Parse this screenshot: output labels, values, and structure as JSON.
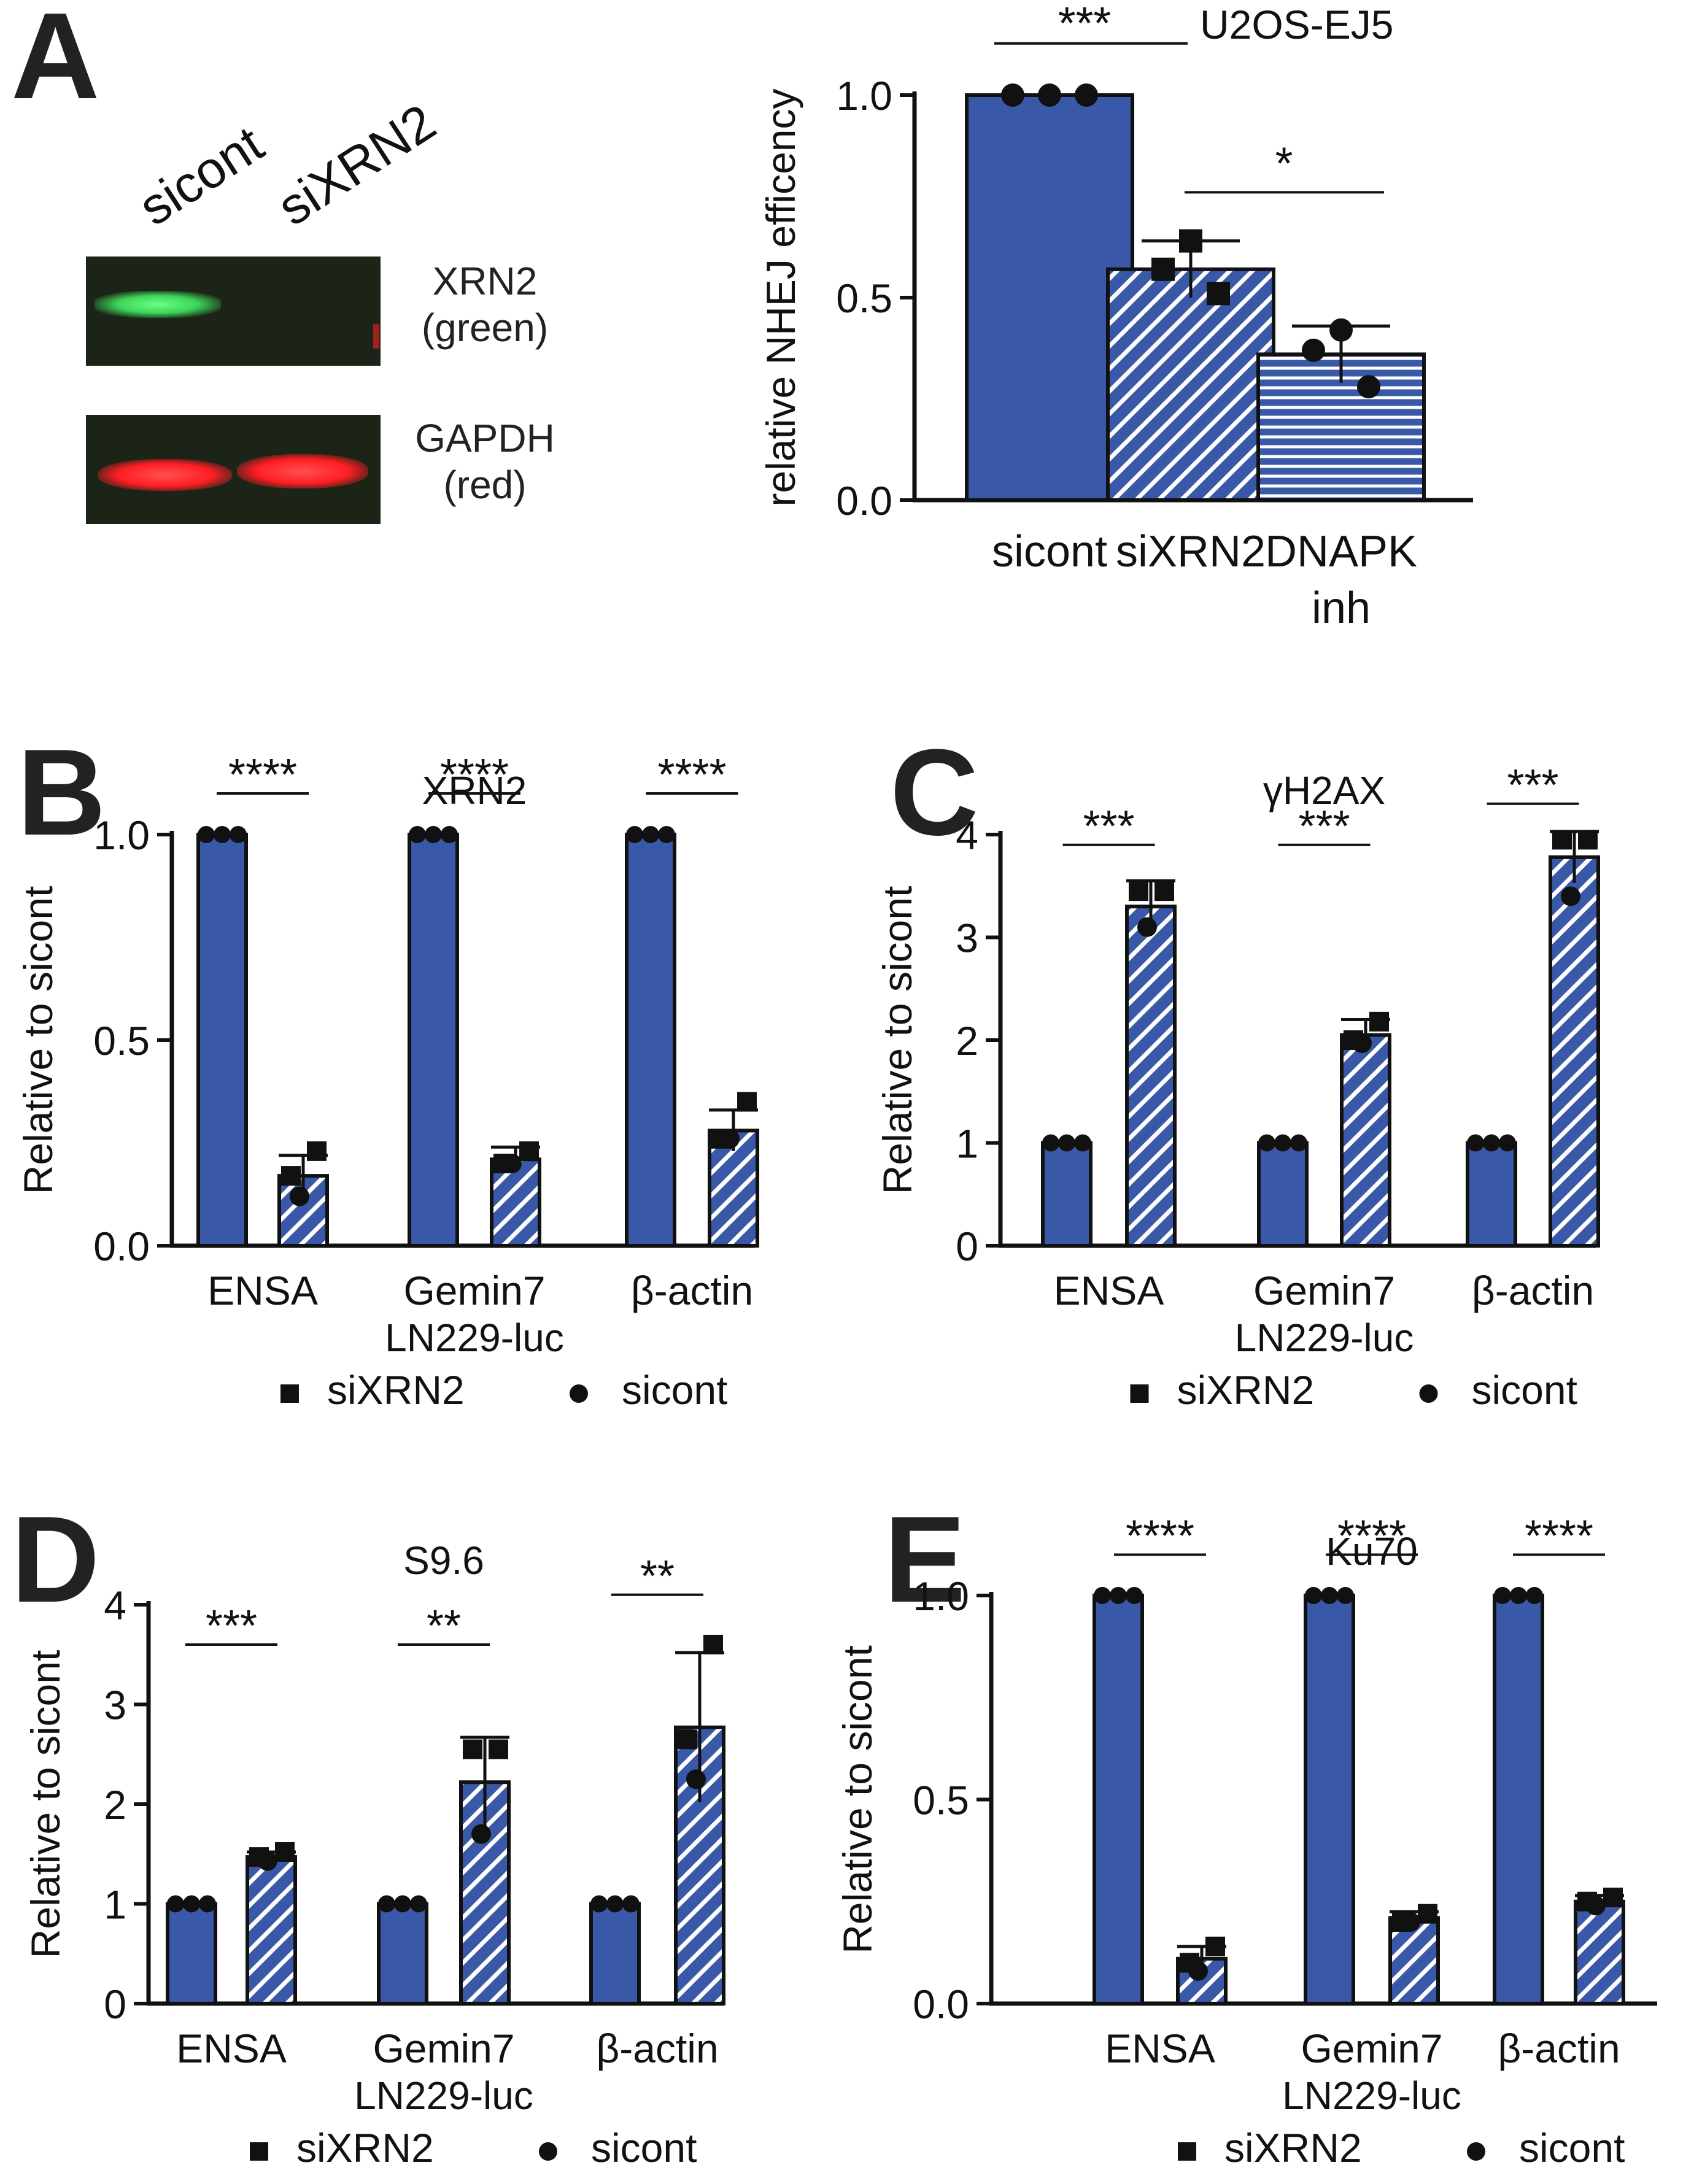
{
  "colors": {
    "bar_fill": "#3a58a8",
    "bar_stroke": "#111111",
    "hatch_line": "#ffffff",
    "band_green": "#3ed45a",
    "band_red": "#ff1e24",
    "blot_bg": "#1b2416"
  },
  "panelA": {
    "letter": "A",
    "blot": {
      "lanes": [
        "sicont",
        "siXRN2"
      ],
      "rows": [
        {
          "label": "XRN2\n(green)",
          "band_color": "green",
          "band_lanes": [
            1,
            0
          ]
        },
        {
          "label": "GAPDH\n(red)",
          "band_color": "red",
          "band_lanes": [
            1,
            1
          ]
        }
      ]
    }
  },
  "chart_data": [
    {
      "id": "A",
      "type": "bar",
      "title": "U2OS-EJ5",
      "ylabel": "relative NHEJ efficency",
      "xlabel": "",
      "ylim": [
        0,
        1.0
      ],
      "yticks": [
        "0.0",
        "0.5",
        "1.0"
      ],
      "categories": [
        "sicont",
        "siXRN2",
        "DNAPK\ninh"
      ],
      "values": [
        1.0,
        0.57,
        0.36
      ],
      "errors": [
        0,
        0.07,
        0.07
      ],
      "patterns": [
        "solid",
        "diag",
        "horiz"
      ],
      "points": [
        [
          1.0,
          1.0,
          1.0
        ],
        [
          0.64,
          0.57,
          0.51
        ],
        [
          0.42,
          0.37,
          0.28
        ]
      ],
      "markers": [
        "circle",
        "square",
        "circle"
      ],
      "significance": [
        {
          "label": "***",
          "from": 0,
          "to": 1,
          "y": 1.12
        },
        {
          "label": "*",
          "from": 1,
          "to": 2,
          "y": 0.76
        }
      ]
    },
    {
      "id": "B",
      "type": "bar",
      "title": "XRN2",
      "ylabel": "Relative to sicont",
      "xlabel": "LN229-luc",
      "ylim": [
        0,
        1.0
      ],
      "yticks": [
        "0.0",
        "0.5",
        "1.0"
      ],
      "categories": [
        "ENSA",
        "Gemin7",
        "β-actin"
      ],
      "series": [
        {
          "name": "sicont",
          "values": [
            1.0,
            1.0,
            1.0
          ],
          "errors": [
            0,
            0,
            0
          ],
          "points": [
            [
              1.0,
              1.0,
              1.0
            ],
            [
              1.0,
              1.0,
              1.0
            ],
            [
              1.0,
              1.0,
              1.0
            ]
          ]
        },
        {
          "name": "siXRN2",
          "values": [
            0.17,
            0.21,
            0.28
          ],
          "errors": [
            0.05,
            0.03,
            0.05
          ],
          "points": [
            [
              0.23,
              0.17,
              0.12
            ],
            [
              0.23,
              0.2,
              0.2
            ],
            [
              0.35,
              0.26,
              0.26
            ]
          ]
        }
      ],
      "significance": [
        {
          "label": "****",
          "group": 0,
          "y": 1.1
        },
        {
          "label": "****",
          "group": 1,
          "y": 1.1
        },
        {
          "label": "****",
          "group": 2,
          "y": 1.1
        }
      ],
      "legend": [
        "siXRN2",
        "sicont"
      ]
    },
    {
      "id": "C",
      "type": "bar",
      "title": "γH2AX",
      "ylabel": "Relative to sicont",
      "xlabel": "LN229-luc",
      "ylim": [
        0,
        4
      ],
      "yticks": [
        "0",
        "1",
        "2",
        "3",
        "4"
      ],
      "categories": [
        "ENSA",
        "Gemin7",
        "β-actin"
      ],
      "series": [
        {
          "name": "sicont",
          "values": [
            1,
            1,
            1
          ],
          "errors": [
            0,
            0,
            0
          ],
          "points": [
            [
              1,
              1,
              1
            ],
            [
              1,
              1,
              1
            ],
            [
              1,
              1,
              1
            ]
          ]
        },
        {
          "name": "siXRN2",
          "values": [
            3.3,
            2.05,
            3.78
          ],
          "errors": [
            0.25,
            0.15,
            0.25
          ],
          "points": [
            [
              3.45,
              3.45,
              3.1
            ],
            [
              2.18,
              2.0,
              1.97
            ],
            [
              3.95,
              3.95,
              3.4
            ]
          ]
        }
      ],
      "significance": [
        {
          "label": "***",
          "group": 0,
          "y": 3.9
        },
        {
          "label": "***",
          "group": 1,
          "y": 3.9
        },
        {
          "label": "***",
          "group": 2,
          "y": 4.3
        }
      ],
      "legend": [
        "siXRN2",
        "sicont"
      ]
    },
    {
      "id": "D",
      "type": "bar",
      "title": "S9.6",
      "ylabel": "Relative to sicont",
      "xlabel": "LN229-luc",
      "ylim": [
        0,
        4
      ],
      "yticks": [
        "0",
        "1",
        "2",
        "3",
        "4"
      ],
      "categories": [
        "ENSA",
        "Gemin7",
        "β-actin"
      ],
      "series": [
        {
          "name": "sicont",
          "values": [
            1,
            1,
            1
          ],
          "errors": [
            0,
            0,
            0
          ],
          "points": [
            [
              1,
              1,
              1
            ],
            [
              1,
              1,
              1
            ],
            [
              1,
              1,
              1
            ]
          ]
        },
        {
          "name": "siXRN2",
          "values": [
            1.47,
            2.22,
            2.77
          ],
          "errors": [
            0.05,
            0.45,
            0.75
          ],
          "points": [
            [
              1.52,
              1.47,
              1.43
            ],
            [
              2.55,
              2.55,
              1.7
            ],
            [
              3.6,
              2.65,
              2.25
            ]
          ]
        }
      ],
      "significance": [
        {
          "label": "***",
          "group": 0,
          "y": 3.6
        },
        {
          "label": "**",
          "group": 1,
          "y": 3.6
        },
        {
          "label": "**",
          "group": 2,
          "y": 4.1
        }
      ],
      "legend": [
        "siXRN2",
        "sicont"
      ]
    },
    {
      "id": "E",
      "type": "bar",
      "title": "Ku70",
      "ylabel": "Relative to sicont",
      "xlabel": "LN229-luc",
      "ylim": [
        0,
        1.0
      ],
      "yticks": [
        "0.0",
        "0.5",
        "1.0"
      ],
      "categories": [
        "ENSA",
        "Gemin7",
        "β-actin"
      ],
      "series": [
        {
          "name": "sicont",
          "values": [
            1.0,
            1.0,
            1.0
          ],
          "errors": [
            0,
            0,
            0
          ],
          "points": [
            [
              1.0,
              1.0,
              1.0
            ],
            [
              1.0,
              1.0,
              1.0
            ],
            [
              1.0,
              1.0,
              1.0
            ]
          ]
        },
        {
          "name": "siXRN2",
          "values": [
            0.11,
            0.21,
            0.25
          ],
          "errors": [
            0.03,
            0.015,
            0.015
          ],
          "points": [
            [
              0.14,
              0.1,
              0.08
            ],
            [
              0.22,
              0.2,
              0.2
            ],
            [
              0.26,
              0.25,
              0.24
            ]
          ]
        }
      ],
      "significance": [
        {
          "label": "****",
          "group": 0,
          "y": 1.1
        },
        {
          "label": "****",
          "group": 1,
          "y": 1.1
        },
        {
          "label": "****",
          "group": 2,
          "y": 1.1
        }
      ],
      "legend": [
        "siXRN2",
        "sicont"
      ]
    }
  ]
}
